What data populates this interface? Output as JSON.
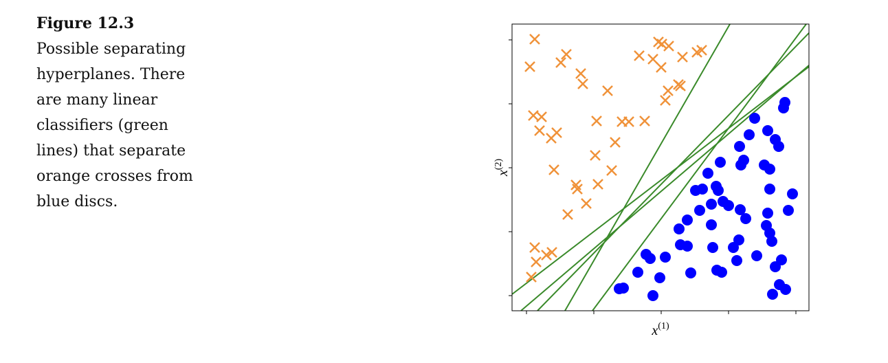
{
  "caption": {
    "label": "Figure 12.3",
    "lines": [
      "Possible separating",
      "hyperplanes. There",
      "are many linear",
      "classifiers (green",
      "lines) that separate",
      "orange crosses from",
      "blue discs."
    ]
  },
  "chart_data": {
    "type": "scatter",
    "xlabel": {
      "base": "x",
      "sup": "(1)"
    },
    "ylabel": {
      "base": "x",
      "sup": "(2)"
    },
    "xlim": [
      0,
      432
    ],
    "ylim": [
      0,
      417
    ],
    "xticks": [
      21,
      119,
      217,
      315,
      413
    ],
    "yticks": [
      22,
      115,
      208,
      301,
      394
    ],
    "series": [
      {
        "marker": "x",
        "color": "#f0923a",
        "x": [
          33,
          26,
          79,
          71,
          100,
          103,
          139,
          185,
          205,
          213,
          218,
          228,
          217,
          248,
          269,
          276,
          242,
          245,
          227,
          223,
          31,
          43,
          40,
          57,
          65,
          123,
          160,
          170,
          193,
          150,
          121,
          145,
          61,
          93,
          95,
          125,
          108,
          81,
          33,
          35,
          50,
          58,
          28
        ],
        "y": [
          395,
          355,
          373,
          361,
          345,
          330,
          320,
          371,
          366,
          391,
          388,
          385,
          354,
          369,
          376,
          379,
          329,
          327,
          320,
          306,
          284,
          282,
          262,
          251,
          259,
          276,
          275,
          275,
          276,
          245,
          226,
          204,
          205,
          183,
          177,
          184,
          156,
          140,
          92,
          71,
          81,
          85,
          49
        ]
      },
      {
        "marker": "o",
        "color": "#0000ff",
        "x": [
          397,
          395,
          353,
          372,
          345,
          383,
          388,
          331,
          337,
          333,
          303,
          367,
          375,
          285,
          277,
          267,
          297,
          300,
          290,
          307,
          315,
          332,
          375,
          408,
          273,
          255,
          243,
          290,
          340,
          372,
          402,
          370,
          375,
          378,
          330,
          322,
          245,
          255,
          292,
          195,
          201,
          223,
          327,
          356,
          392,
          383,
          183,
          260,
          298,
          305,
          215,
          156,
          162,
          205,
          389,
          398,
          379
        ],
        "y": [
          303,
          295,
          280,
          262,
          256,
          249,
          239,
          239,
          219,
          212,
          216,
          212,
          206,
          200,
          177,
          175,
          181,
          175,
          155,
          159,
          153,
          147,
          177,
          170,
          146,
          132,
          119,
          125,
          134,
          142,
          146,
          124,
          113,
          101,
          103,
          92,
          96,
          94,
          92,
          82,
          76,
          78,
          73,
          80,
          74,
          64,
          56,
          55,
          59,
          56,
          48,
          32,
          33,
          22,
          38,
          31,
          24
        ]
      }
    ],
    "lines": [
      {
        "color": "#3a8a2a",
        "x": [
          77,
          317
        ],
        "y": [
          0,
          417
        ]
      },
      {
        "color": "#3a8a2a",
        "x": [
          117,
          428
        ],
        "y": [
          0,
          417
        ]
      },
      {
        "color": "#3a8a2a",
        "x": [
          37,
          432
        ],
        "y": [
          0,
          404
        ]
      },
      {
        "color": "#3a8a2a",
        "x": [
          13,
          432
        ],
        "y": [
          0,
          357
        ]
      },
      {
        "color": "#3a8a2a",
        "x": [
          0,
          432
        ],
        "y": [
          24,
          355
        ]
      }
    ]
  }
}
